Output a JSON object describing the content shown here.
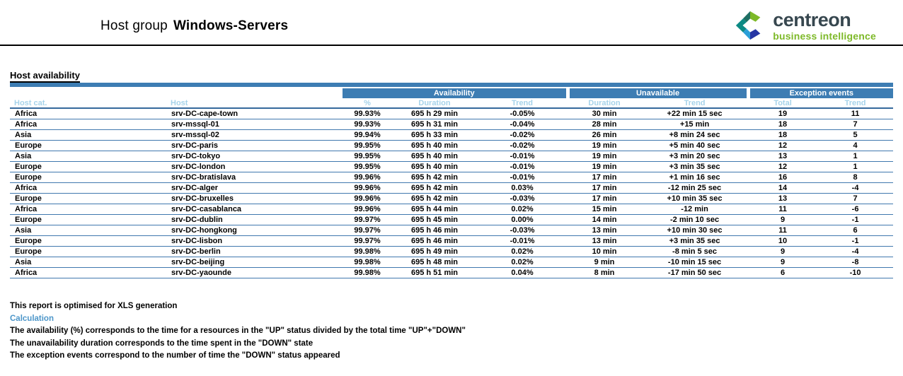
{
  "page": {
    "title_prefix": "Host group",
    "title_group": "Windows-Servers"
  },
  "logo": {
    "brand": "centreon",
    "tagline": "business intelligence"
  },
  "section": {
    "title": "Host availability"
  },
  "table": {
    "group_headers": [
      {
        "label": "Availability",
        "span": 3
      },
      {
        "label": "Unavailable",
        "span": 2
      },
      {
        "label": "Exception events",
        "span": 2
      }
    ],
    "columns": [
      "Host cat.",
      "Host",
      "%",
      "Duration",
      "Trend",
      "Duration",
      "Trend",
      "Total",
      "Trend"
    ],
    "rows": [
      [
        "Africa",
        "srv-DC-cape-town",
        "99.93%",
        "695 h 29 min",
        "-0.05%",
        "30 min",
        "+22 min 15 sec",
        "19",
        "11"
      ],
      [
        "Africa",
        "srv-mssql-01",
        "99.93%",
        "695 h 31 min",
        "-0.04%",
        "28 min",
        "+15 min",
        "18",
        "7"
      ],
      [
        "Asia",
        "srv-mssql-02",
        "99.94%",
        "695 h 33 min",
        "-0.02%",
        "26 min",
        "+8 min 24 sec",
        "18",
        "5"
      ],
      [
        "Europe",
        "srv-DC-paris",
        "99.95%",
        "695 h 40 min",
        "-0.02%",
        "19 min",
        "+5 min 40 sec",
        "12",
        "4"
      ],
      [
        "Asia",
        "srv-DC-tokyo",
        "99.95%",
        "695 h 40 min",
        "-0.01%",
        "19 min",
        "+3 min 20 sec",
        "13",
        "1"
      ],
      [
        "Europe",
        "srv-DC-london",
        "99.95%",
        "695 h 40 min",
        "-0.01%",
        "19 min",
        "+3 min 35 sec",
        "12",
        "1"
      ],
      [
        "Europe",
        "srv-DC-bratislava",
        "99.96%",
        "695 h 42 min",
        "-0.01%",
        "17 min",
        "+1 min 16 sec",
        "16",
        "8"
      ],
      [
        "Africa",
        "srv-DC-alger",
        "99.96%",
        "695 h 42 min",
        "0.03%",
        "17 min",
        "-12 min 25 sec",
        "14",
        "-4"
      ],
      [
        "Europe",
        "srv-DC-bruxelles",
        "99.96%",
        "695 h 42 min",
        "-0.03%",
        "17 min",
        "+10 min 35 sec",
        "13",
        "7"
      ],
      [
        "Africa",
        "srv-DC-casablanca",
        "99.96%",
        "695 h 44 min",
        "0.02%",
        "15 min",
        "-12 min",
        "11",
        "-6"
      ],
      [
        "Europe",
        "srv-DC-dublin",
        "99.97%",
        "695 h 45 min",
        "0.00%",
        "14 min",
        "-2 min 10 sec",
        "9",
        "-1"
      ],
      [
        "Asia",
        "srv-DC-hongkong",
        "99.97%",
        "695 h 46 min",
        "-0.03%",
        "13 min",
        "+10 min 30 sec",
        "11",
        "6"
      ],
      [
        "Europe",
        "srv-DC-lisbon",
        "99.97%",
        "695 h 46 min",
        "-0.01%",
        "13 min",
        "+3 min 35 sec",
        "10",
        "-1"
      ],
      [
        "Europe",
        "srv-DC-berlin",
        "99.98%",
        "695 h 49 min",
        "0.02%",
        "10 min",
        "-8 min 5 sec",
        "9",
        "-4"
      ],
      [
        "Asia",
        "srv-DC-beijing",
        "99.98%",
        "695 h 48 min",
        "0.02%",
        "9 min",
        "-10 min 15 sec",
        "9",
        "-8"
      ],
      [
        "Africa",
        "srv-DC-yaounde",
        "99.98%",
        "695 h 51 min",
        "0.04%",
        "8 min",
        "-17 min 50 sec",
        "6",
        "-10"
      ]
    ]
  },
  "footer": {
    "xls_note": "This report is optimised for XLS generation",
    "calculation_title": "Calculation",
    "notes": [
      "The availability (%) corresponds to the time for a resources in the \"UP\" status divided by the total time \"UP\"+\"DOWN\"",
      "The unavailability duration corresponds to the time spent in the \"DOWN\" state",
      "The exception events correspond to the number of time the \"DOWN\" status appeared"
    ]
  },
  "colors": {
    "header_bar": "#3D7DB3",
    "subheader_text": "#A6D3EA",
    "row_line": "#4078AE",
    "subheader_line": "#35699C",
    "calculation_text": "#4D96C9",
    "logo_brand": "#37474F",
    "logo_green": "#7DB928"
  }
}
